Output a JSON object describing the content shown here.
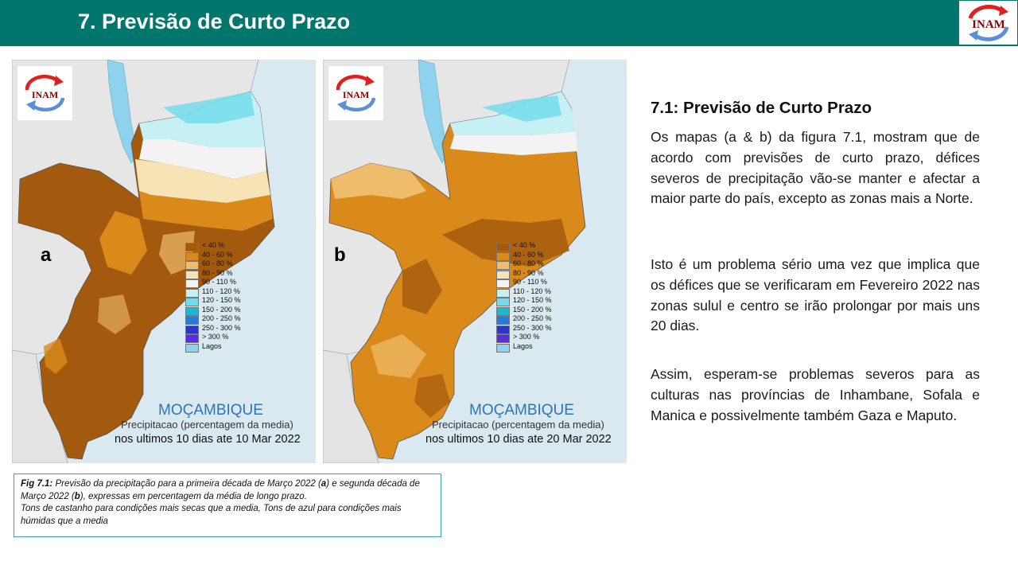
{
  "header": {
    "title": "7. Previsão de Curto Prazo",
    "logo_text": "INAM"
  },
  "maps": [
    {
      "letter": "a",
      "logo_text": "INAM",
      "country": "MOÇAMBIQUE",
      "subtitle": "Precipitacao (percentagem da media)",
      "period": "nos ultimos 10 dias ate 10 Mar 2022"
    },
    {
      "letter": "b",
      "logo_text": "INAM",
      "country": "MOÇAMBIQUE",
      "subtitle": "Precipitacao (percentagem da media)",
      "period": "nos ultimos 10 dias ate 20 Mar 2022"
    }
  ],
  "legend": [
    {
      "label": "< 40 %",
      "color": "#a35a0e"
    },
    {
      "label": "40 - 60 %",
      "color": "#d98a1a"
    },
    {
      "label": "60 - 80 %",
      "color": "#efbc6c"
    },
    {
      "label": "80 - 90 %",
      "color": "#f7e3b5"
    },
    {
      "label": "90 - 110 %",
      "color": "#f3f3f3"
    },
    {
      "label": "110 - 120 %",
      "color": "#c7f0f4"
    },
    {
      "label": "120 - 150 %",
      "color": "#6fdcec"
    },
    {
      "label": "150 - 200 %",
      "color": "#16b9d6"
    },
    {
      "label": "200 - 250 %",
      "color": "#2c7ad8"
    },
    {
      "label": "250 - 300 %",
      "color": "#2b36c8"
    },
    {
      "label": "> 300 %",
      "color": "#5b2be0"
    },
    {
      "label": "Lagos",
      "color": "#8fd2ee"
    }
  ],
  "caption": {
    "fig_label": "Fig 7.1:",
    "line1_part1": " Previsão da precipitação para a primeira década de Março 2022 (",
    "line1_a": "a",
    "line1_part2": ") e segunda década de Março 2022  (",
    "line1_b": "b",
    "line1_part3": "), expressas em percentagem da média de longo prazo.",
    "line2": "Tons de castanho para condições mais secas que a media, Tons de azul para condições mais húmidas que a media"
  },
  "side": {
    "title": "7.1: Previsão de Curto Prazo",
    "p1": "Os mapas (a & b) da figura 7.1, mostram que de acordo com previsões de curto prazo, défices severos de precipitação vão-se manter e afectar a maior parte do país, excepto as zonas mais a Norte.",
    "p2": "Isto é um problema sério uma vez que implica que os défices que se verificaram em Fevereiro 2022 nas zonas sulul e centro  se irão prolongar por mais uns 20 dias.",
    "p3": "Assim, esperam-se problemas severos para as culturas nas províncias de Inhambane, Sofala e Manica e possivelmente também Gaza e Maputo."
  }
}
